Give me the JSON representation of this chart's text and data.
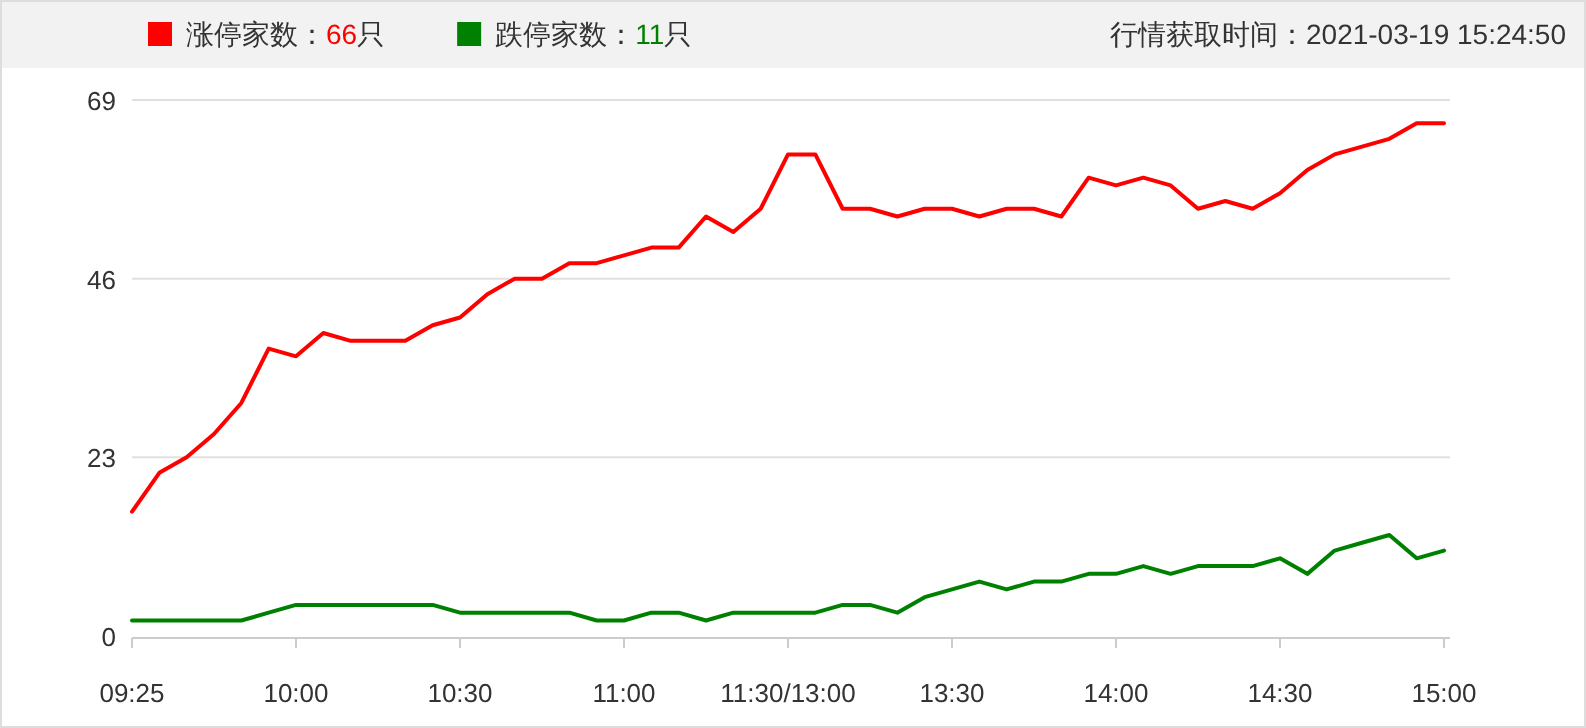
{
  "chart_data": {
    "type": "line",
    "categories": [
      "09:25",
      null,
      null,
      null,
      null,
      null,
      "10:00",
      null,
      null,
      null,
      null,
      null,
      "10:30",
      null,
      null,
      null,
      null,
      null,
      "11:00",
      null,
      null,
      null,
      null,
      null,
      "11:30/13:00",
      null,
      null,
      null,
      null,
      null,
      "13:30",
      null,
      null,
      null,
      null,
      null,
      "14:00",
      null,
      null,
      null,
      null,
      null,
      "14:30",
      null,
      null,
      null,
      null,
      null,
      "15:00"
    ],
    "series": [
      {
        "name": "涨停家数：66只",
        "color": "#ff0000",
        "values": [
          16,
          21,
          23,
          26,
          30,
          37,
          36,
          39,
          38,
          38,
          38,
          40,
          41,
          44,
          46,
          46,
          48,
          48,
          49,
          50,
          50,
          54,
          52,
          55,
          62,
          62,
          55,
          55,
          54,
          55,
          55,
          54,
          55,
          55,
          54,
          59,
          58,
          59,
          58,
          55,
          56,
          55,
          57,
          60,
          62,
          63,
          64,
          66,
          66
        ]
      },
      {
        "name": "跌停家数：11只",
        "color": "#008000",
        "values": [
          2,
          2,
          2,
          2,
          2,
          3,
          4,
          4,
          4,
          4,
          4,
          4,
          3,
          3,
          3,
          3,
          3,
          2,
          2,
          3,
          3,
          2,
          3,
          3,
          3,
          3,
          4,
          4,
          3,
          5,
          6,
          7,
          6,
          7,
          7,
          8,
          8,
          9,
          8,
          9,
          9,
          9,
          10,
          8,
          11,
          12,
          13,
          10,
          11
        ]
      }
    ],
    "ylim": [
      0,
      69
    ],
    "yticks": [
      0,
      23,
      46,
      69
    ],
    "grid": "y",
    "legend": "top left",
    "marker": "none",
    "line_style": "solid",
    "annotations": [
      "行情获取时间：2021-03-19 15:24:50"
    ]
  }
}
